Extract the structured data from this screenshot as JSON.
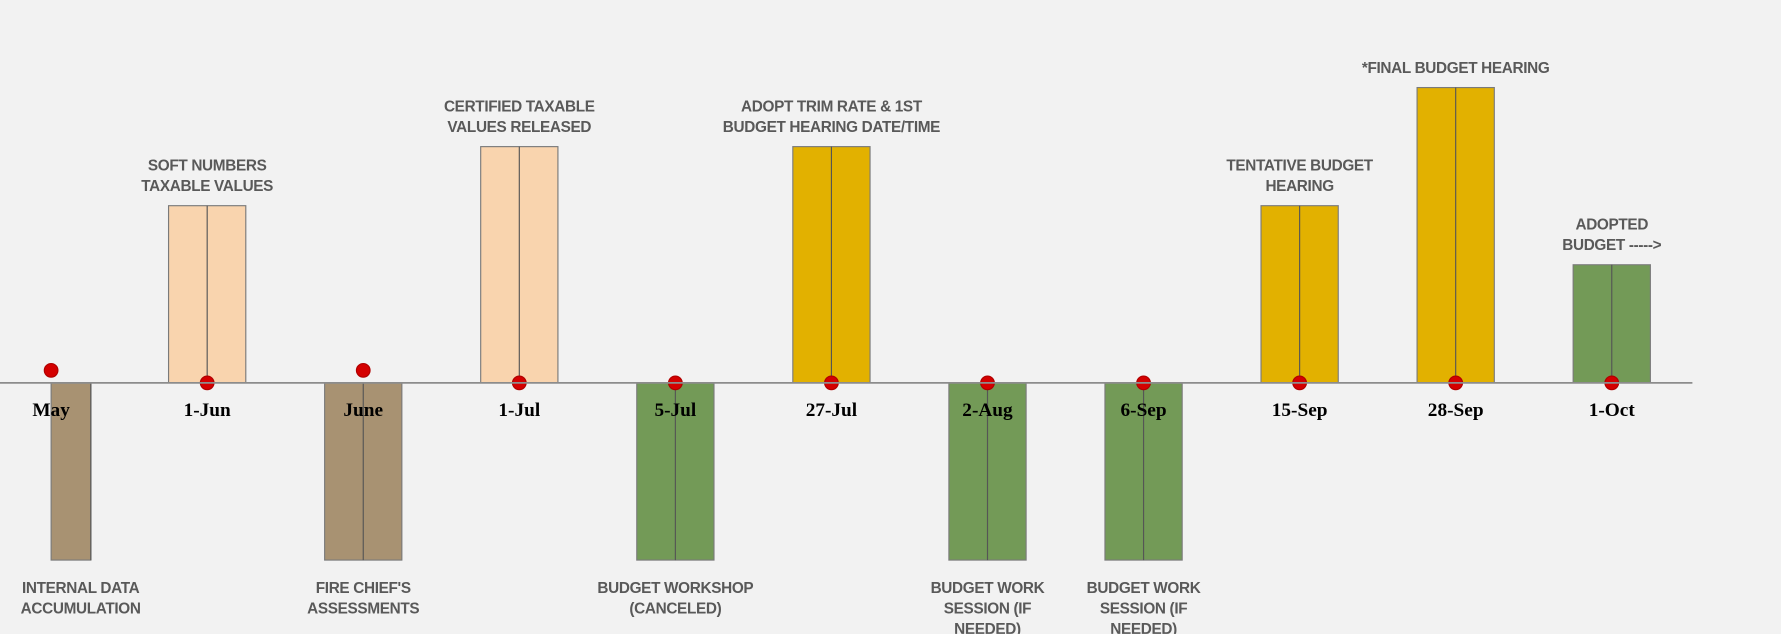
{
  "chart_data": {
    "type": "bar",
    "categories": [
      "May",
      "1-Jun",
      "June",
      "1-Jul",
      "5-Jul",
      "27-Jul",
      "2-Aug",
      "6-Sep",
      "15-Sep",
      "28-Sep",
      "1-Oct"
    ],
    "values": [
      -3,
      3,
      -3,
      4,
      -3,
      4,
      -3,
      -3,
      3,
      5,
      2
    ],
    "annotations": [
      "INTERNAL DATA ACCUMULATION",
      "SOFT NUMBERS TAXABLE VALUES",
      "FIRE CHIEF'S ASSESSMENTS",
      "CERTIFIED TAXABLE VALUES RELEASED",
      "BUDGET WORKSHOP (CANCELED)",
      "ADOPT TRIM RATE & 1ST BUDGET HEARING DATE/TIME",
      "BUDGET WORK SESSION (IF NEEDED)",
      "BUDGET WORK SESSION (IF NEEDED)",
      "TENTATIVE BUDGET HEARING",
      "*FINAL BUDGET HEARING",
      "ADOPTED BUDGET ----->"
    ],
    "colors": [
      "#a89272",
      "#f9d4ae",
      "#a89272",
      "#f9d4ae",
      "#739a57",
      "#e2b100",
      "#739a57",
      "#739a57",
      "#e2b100",
      "#e2b100",
      "#739a57"
    ],
    "ylim": [
      -4,
      6
    ]
  }
}
